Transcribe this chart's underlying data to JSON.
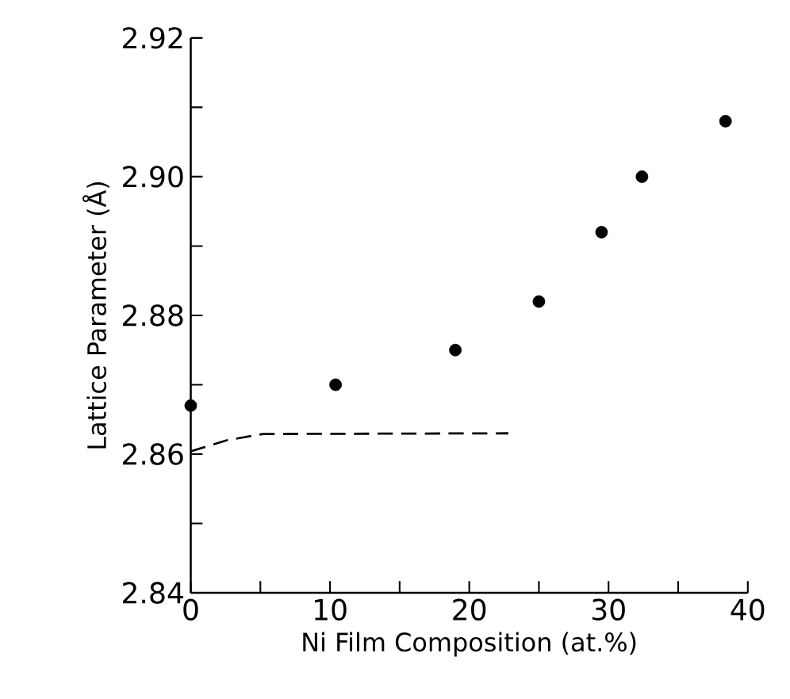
{
  "chart_data": {
    "type": "scatter",
    "xlabel": "Ni Film Composition (at.%)",
    "ylabel": "Lattice Parameter (Å)",
    "xlim": [
      0,
      40
    ],
    "ylim": [
      2.84,
      2.92
    ],
    "xticks": [
      0,
      {
        "value": 5,
        "label": null
      },
      10,
      {
        "value": 15,
        "label": null
      },
      20,
      {
        "value": 25,
        "label": null
      },
      30,
      {
        "value": 35,
        "label": null
      },
      40
    ],
    "yticks": [
      2.84,
      {
        "value": 2.85,
        "label": null
      },
      2.86,
      {
        "value": 2.87,
        "label": null
      },
      2.88,
      {
        "value": 2.89,
        "label": null
      },
      {
        "value": 2.9,
        "label": "2.90"
      },
      {
        "value": 2.91,
        "label": null
      },
      2.92
    ],
    "grid": false,
    "series": [
      {
        "color": "#000000",
        "marker": "circle",
        "x": [
          0,
          10.4,
          19.0,
          25.0,
          29.5,
          32.4,
          38.4
        ],
        "values": [
          2.867,
          2.87,
          2.875,
          2.882,
          2.892,
          2.9,
          2.908
        ]
      },
      {
        "type": "line",
        "color": "#000000",
        "marker": "none",
        "line_style": "dashed",
        "x": [
          0,
          2.6,
          5.2,
          22.8
        ],
        "values": [
          2.8604,
          2.862,
          2.8629,
          2.863
        ]
      }
    ]
  }
}
